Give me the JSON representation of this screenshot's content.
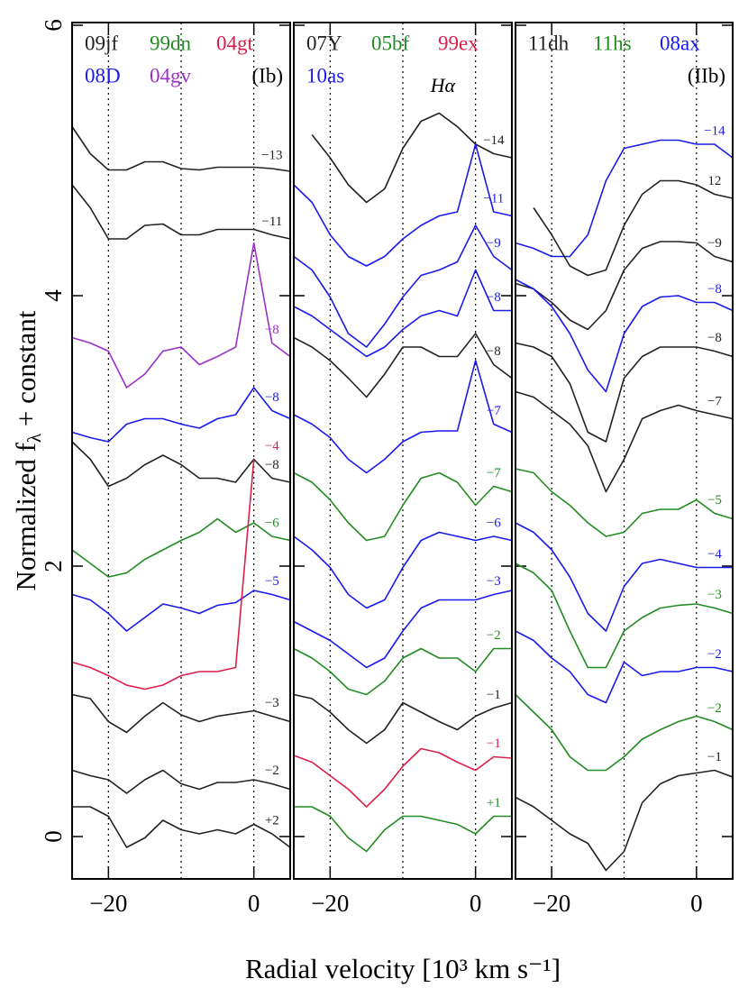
{
  "chart_data": [
    {
      "type": "line",
      "ylabel": {
        "text": "Normalized f",
        "sub": "λ",
        "rest": " + constant"
      },
      "legend": [
        {
          "name": "09jf",
          "color": "#222222"
        },
        {
          "name": "99dn",
          "color": "#228b22"
        },
        {
          "name": "04gt",
          "color": "#dc1f4a"
        },
        {
          "name": "08D",
          "color": "#1a1aee"
        },
        {
          "name": "04gv",
          "color": "#9b30c8"
        }
      ],
      "annotation": "(Ib)",
      "xlim": [
        -25,
        5
      ],
      "ylim": [
        -0.3,
        6.0
      ],
      "xticks": [
        {
          "value": -20,
          "label": "−20"
        },
        0
      ],
      "yticks": [
        0,
        2,
        4,
        6
      ],
      "vlines": [
        -20,
        -10,
        0
      ],
      "x": [
        -25,
        -22.5,
        -20,
        -17.5,
        -15,
        -12.5,
        -10,
        -7.5,
        -5,
        -2.5,
        0,
        2.5,
        5
      ],
      "series": [
        {
          "label": "−13",
          "color": "#222222",
          "values": [
            5.25,
            5.05,
            4.93,
            4.93,
            4.99,
            4.99,
            4.94,
            4.93,
            4.95,
            4.95,
            4.95,
            4.94,
            4.92
          ]
        },
        {
          "label": "−11",
          "color": "#222222",
          "values": [
            4.82,
            4.65,
            4.42,
            4.42,
            4.52,
            4.53,
            4.45,
            4.45,
            4.49,
            4.49,
            4.49,
            4.45,
            4.42
          ]
        },
        {
          "label": "−8",
          "color": "#9b30c8",
          "values": [
            3.69,
            3.65,
            3.59,
            3.32,
            3.42,
            3.59,
            3.62,
            3.49,
            3.55,
            3.62,
            4.39,
            3.65,
            3.55
          ]
        },
        {
          "label": "−8",
          "color": "#1a1aee",
          "values": [
            2.99,
            2.95,
            2.92,
            3.05,
            3.09,
            3.09,
            3.05,
            3.02,
            3.09,
            3.12,
            3.32,
            3.15,
            3.09
          ]
        },
        {
          "label": "−8",
          "color": "#222222",
          "values": [
            2.92,
            2.79,
            2.59,
            2.65,
            2.75,
            2.82,
            2.75,
            2.65,
            2.65,
            2.62,
            2.79,
            2.65,
            2.62
          ]
        },
        {
          "label": "−6",
          "color": "#228b22",
          "values": [
            2.12,
            2.02,
            1.92,
            1.95,
            2.05,
            2.12,
            2.19,
            2.25,
            2.35,
            2.25,
            2.32,
            2.22,
            2.19
          ]
        },
        {
          "label": "−5",
          "color": "#1a1aee",
          "values": [
            1.79,
            1.75,
            1.65,
            1.52,
            1.62,
            1.72,
            1.69,
            1.65,
            1.71,
            1.73,
            1.82,
            1.79,
            1.75
          ]
        },
        {
          "label": "−4",
          "color": "#dc1f4a",
          "values": [
            1.29,
            1.25,
            1.19,
            1.12,
            1.09,
            1.12,
            1.19,
            1.22,
            1.22,
            1.25,
            2.79,
            null,
            null
          ]
        },
        {
          "label": "−3",
          "color": "#222222",
          "values": [
            1.05,
            1.02,
            0.85,
            0.77,
            0.89,
            0.99,
            0.9,
            0.85,
            0.89,
            0.91,
            0.93,
            0.89,
            0.85
          ]
        },
        {
          "label": "−2",
          "color": "#222222",
          "values": [
            0.49,
            0.45,
            0.42,
            0.32,
            0.42,
            0.49,
            0.39,
            0.35,
            0.4,
            0.4,
            0.42,
            0.39,
            0.35
          ]
        },
        {
          "label": "+2",
          "color": "#222222",
          "values": [
            0.22,
            0.22,
            0.15,
            -0.08,
            -0.01,
            0.12,
            0.05,
            0.02,
            0.05,
            0.02,
            0.09,
            0.02,
            -0.08
          ]
        }
      ]
    },
    {
      "type": "line",
      "xlabel": "Radial velocity [10³ km s⁻¹]",
      "legend": [
        {
          "name": "07Y",
          "color": "#222222"
        },
        {
          "name": "05bf",
          "color": "#228b22"
        },
        {
          "name": "99ex",
          "color": "#dc1f4a"
        },
        {
          "name": "10as",
          "color": "#1a1aee"
        }
      ],
      "annotation": "Hα",
      "xlim": [
        -25,
        5
      ],
      "ylim": [
        -0.3,
        6.0
      ],
      "xticks": [
        {
          "value": -20,
          "label": "−20"
        },
        0
      ],
      "vlines": [
        -20,
        -10,
        0
      ],
      "x": [
        -25,
        -22.5,
        -20,
        -17.5,
        -15,
        -12.5,
        -10,
        -7.5,
        -5,
        -2.5,
        0,
        2.5,
        5
      ],
      "series": [
        {
          "label": "−14",
          "color": "#222222",
          "values": [
            null,
            5.19,
            5.02,
            4.82,
            4.69,
            4.79,
            5.09,
            5.29,
            5.35,
            5.25,
            5.12,
            5.05,
            5.02
          ]
        },
        {
          "label": "−11",
          "color": "#1a1aee",
          "values": [
            4.82,
            4.69,
            4.45,
            4.29,
            4.22,
            4.29,
            4.42,
            4.52,
            4.59,
            4.62,
            5.12,
            4.62,
            4.59
          ]
        },
        {
          "label": "−9",
          "color": "#1a1aee",
          "values": [
            4.29,
            4.19,
            3.99,
            3.72,
            3.62,
            3.79,
            3.99,
            4.15,
            4.19,
            4.25,
            4.52,
            4.29,
            4.19
          ]
        },
        {
          "label": "−8",
          "color": "#1a1aee",
          "values": [
            3.92,
            3.85,
            3.75,
            3.65,
            3.55,
            3.62,
            3.75,
            3.85,
            3.89,
            3.85,
            4.19,
            3.89,
            3.89
          ]
        },
        {
          "label": "−8",
          "color": "#222222",
          "values": [
            3.69,
            3.62,
            3.52,
            3.39,
            3.25,
            3.42,
            3.62,
            3.62,
            3.55,
            3.55,
            3.72,
            3.49,
            3.39
          ]
        },
        {
          "label": "−7",
          "color": "#1a1aee",
          "values": [
            3.12,
            3.05,
            2.95,
            2.79,
            2.69,
            2.79,
            2.92,
            2.99,
            3.0,
            3.0,
            3.52,
            3.05,
            2.99
          ]
        },
        {
          "label": "−7",
          "color": "#228b22",
          "values": [
            2.69,
            2.62,
            2.49,
            2.32,
            2.19,
            2.22,
            2.45,
            2.65,
            2.69,
            2.62,
            2.45,
            2.59,
            2.55
          ]
        },
        {
          "label": "−6",
          "color": "#1a1aee",
          "thick": true,
          "values": [
            2.22,
            2.12,
            1.99,
            1.79,
            1.69,
            1.75,
            1.99,
            2.19,
            2.25,
            2.22,
            2.19,
            2.22,
            2.19
          ]
        },
        {
          "label": "−3",
          "color": "#1a1aee",
          "thick": true,
          "values": [
            1.59,
            1.52,
            1.45,
            1.35,
            1.25,
            1.32,
            1.52,
            1.69,
            1.75,
            1.75,
            1.75,
            1.79,
            1.82
          ]
        },
        {
          "label": "−2",
          "color": "#228b22",
          "values": [
            1.39,
            1.32,
            1.22,
            1.09,
            1.05,
            1.15,
            1.32,
            1.39,
            1.32,
            1.32,
            1.22,
            1.39,
            1.39
          ]
        },
        {
          "label": "−1",
          "color": "#222222",
          "values": [
            1.05,
            1.02,
            0.92,
            0.79,
            0.69,
            0.79,
            0.99,
            0.92,
            0.85,
            0.79,
            0.89,
            0.95,
            0.99
          ]
        },
        {
          "label": "−1",
          "color": "#dc1f4a",
          "values": [
            0.6,
            0.55,
            0.45,
            0.35,
            0.22,
            0.35,
            0.52,
            0.65,
            0.62,
            0.55,
            0.49,
            0.59,
            0.58
          ]
        },
        {
          "label": "+1",
          "color": "#228b22",
          "values": [
            0.22,
            0.22,
            0.15,
            -0.01,
            -0.11,
            0.05,
            0.15,
            0.15,
            0.12,
            0.09,
            0.02,
            0.15,
            0.15
          ]
        }
      ]
    },
    {
      "type": "line",
      "legend": [
        {
          "name": "11dh",
          "color": "#222222"
        },
        {
          "name": "11hs",
          "color": "#228b22"
        },
        {
          "name": "08ax",
          "color": "#1a1aee"
        }
      ],
      "annotation": "(IIb)",
      "xlim": [
        -25,
        5
      ],
      "ylim": [
        -0.3,
        6.0
      ],
      "xticks": [
        {
          "value": -20,
          "label": "−20"
        },
        0
      ],
      "vlines": [
        -20,
        -10,
        0
      ],
      "x": [
        -25,
        -22.5,
        -20,
        -17.5,
        -15,
        -12.5,
        -10,
        -7.5,
        -5,
        -2.5,
        0,
        2.5,
        5
      ],
      "series": [
        {
          "label": "−14",
          "color": "#1a1aee",
          "values": [
            4.39,
            4.35,
            4.29,
            4.29,
            4.45,
            4.85,
            5.09,
            5.12,
            5.15,
            5.15,
            5.12,
            5.12,
            5.02
          ]
        },
        {
          "label": "12",
          "color": "#222222",
          "values": [
            null,
            4.65,
            4.45,
            4.22,
            4.15,
            4.19,
            4.52,
            4.75,
            4.85,
            4.85,
            4.82,
            4.75,
            4.72
          ]
        },
        {
          "label": "−9",
          "color": "#222222",
          "values": [
            4.09,
            4.05,
            3.95,
            3.82,
            3.75,
            3.89,
            4.19,
            4.35,
            4.4,
            4.4,
            4.39,
            4.29,
            4.25
          ]
        },
        {
          "label": "−8",
          "color": "#1a1aee",
          "values": [
            4.12,
            4.05,
            3.92,
            3.72,
            3.45,
            3.29,
            3.72,
            3.92,
            3.99,
            4.0,
            3.95,
            3.95,
            3.89
          ]
        },
        {
          "label": "−8",
          "color": "#222222",
          "values": [
            3.65,
            3.62,
            3.55,
            3.35,
            2.99,
            2.92,
            3.39,
            3.55,
            3.62,
            3.62,
            3.62,
            3.59,
            3.55
          ]
        },
        {
          "label": "−7",
          "color": "#222222",
          "values": [
            3.29,
            3.25,
            3.15,
            3.05,
            2.89,
            2.55,
            2.79,
            3.09,
            3.15,
            3.19,
            3.15,
            3.12,
            3.09
          ]
        },
        {
          "label": "−5",
          "color": "#228b22",
          "values": [
            2.72,
            2.69,
            2.55,
            2.45,
            2.32,
            2.22,
            2.25,
            2.39,
            2.42,
            2.42,
            2.49,
            2.39,
            2.35
          ]
        },
        {
          "label": "−4",
          "color": "#1a1aee",
          "values": [
            2.32,
            2.25,
            2.12,
            1.92,
            1.65,
            1.52,
            1.85,
            2.02,
            2.05,
            2.02,
            1.99,
            1.99,
            1.99
          ]
        },
        {
          "label": "−3",
          "color": "#228b22",
          "values": [
            2.02,
            1.95,
            1.82,
            1.52,
            1.25,
            1.25,
            1.52,
            1.62,
            1.69,
            1.71,
            1.72,
            1.69,
            1.65
          ]
        },
        {
          "label": "−2",
          "color": "#1a1aee",
          "thick": true,
          "values": [
            1.52,
            1.45,
            1.32,
            1.22,
            1.05,
            0.99,
            1.29,
            1.19,
            1.22,
            1.22,
            1.25,
            1.25,
            1.22
          ]
        },
        {
          "label": "−2",
          "color": "#228b22",
          "values": [
            1.05,
            0.92,
            0.79,
            0.59,
            0.49,
            0.49,
            0.59,
            0.72,
            0.79,
            0.85,
            0.89,
            0.85,
            0.79
          ]
        },
        {
          "label": "−1",
          "color": "#222222",
          "values": [
            0.29,
            0.22,
            0.12,
            0.02,
            -0.05,
            -0.25,
            -0.11,
            0.25,
            0.39,
            0.45,
            0.47,
            0.49,
            0.44
          ]
        }
      ]
    }
  ]
}
